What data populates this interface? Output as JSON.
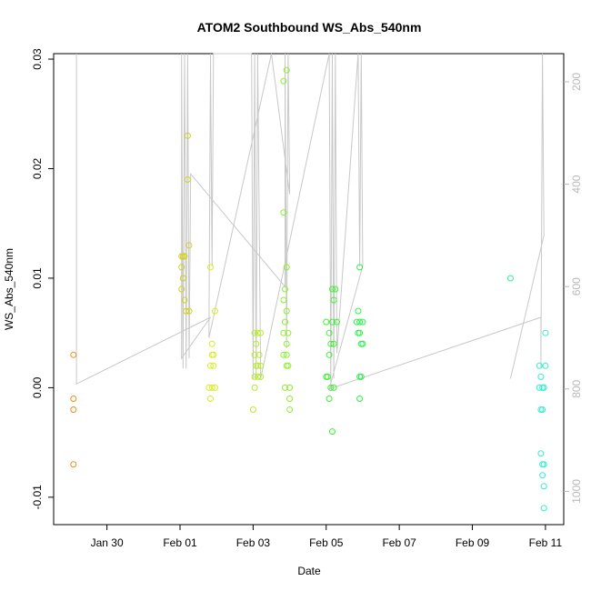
{
  "chart_data": {
    "type": "scatter",
    "title": "ATOM2 Southbound WS_Abs_540nm",
    "xlabel": "Date",
    "ylabel": "WS_Abs_540nm",
    "xlim": [
      "2017-01-28T13:00",
      "2017-02-11T12:00"
    ],
    "ylim": [
      -0.0125,
      0.0305
    ],
    "y2lim": [
      1065,
      145
    ],
    "y2_reversed": true,
    "xticks": [
      {
        "date": "2017-01-30",
        "label": "Jan 30"
      },
      {
        "date": "2017-02-01",
        "label": "Feb 01"
      },
      {
        "date": "2017-02-03",
        "label": "Feb 03"
      },
      {
        "date": "2017-02-05",
        "label": "Feb 05"
      },
      {
        "date": "2017-02-07",
        "label": "Feb 07"
      },
      {
        "date": "2017-02-09",
        "label": "Feb 09"
      },
      {
        "date": "2017-02-11",
        "label": "Feb 11"
      }
    ],
    "yticks": [
      {
        "value": -0.01,
        "label": "-0.01"
      },
      {
        "value": 0.0,
        "label": "0.00"
      },
      {
        "value": 0.01,
        "label": "0.01"
      },
      {
        "value": 0.02,
        "label": "0.02"
      },
      {
        "value": 0.03,
        "label": "0.03"
      }
    ],
    "y2ticks": [
      {
        "value": 200,
        "label": "200"
      },
      {
        "value": 400,
        "label": "400"
      },
      {
        "value": 600,
        "label": "600"
      },
      {
        "value": 800,
        "label": "800"
      },
      {
        "value": 1000,
        "label": "1000"
      }
    ],
    "grid": false,
    "legend": "none",
    "point_series": [
      {
        "color": "#f28a1a",
        "points": [
          [
            "2017-01-29T02:00",
            0.003
          ],
          [
            "2017-01-29T02:00",
            -0.001
          ],
          [
            "2017-01-29T02:00",
            -0.002
          ],
          [
            "2017-01-29T02:00",
            -0.007
          ]
        ]
      },
      {
        "color": "#cfd21c",
        "points": [
          [
            "2017-02-01T01:00",
            0.012
          ],
          [
            "2017-02-01T02:00",
            0.012
          ],
          [
            "2017-02-01T03:00",
            0.012
          ],
          [
            "2017-02-01T01:00",
            0.011
          ],
          [
            "2017-02-01T02:00",
            0.01
          ],
          [
            "2017-02-01T01:00",
            0.009
          ],
          [
            "2017-02-01T03:00",
            0.008
          ],
          [
            "2017-02-01T04:00",
            0.007
          ],
          [
            "2017-02-01T06:00",
            0.007
          ],
          [
            "2017-02-01T06:00",
            0.013
          ],
          [
            "2017-02-01T05:00",
            0.019
          ],
          [
            "2017-02-01T05:00",
            0.023
          ]
        ]
      },
      {
        "color": "#d9eb20",
        "points": [
          [
            "2017-02-01T20:00",
            0.011
          ],
          [
            "2017-02-01T21:00",
            0.004
          ],
          [
            "2017-02-01T21:00",
            0.003
          ],
          [
            "2017-02-01T22:00",
            0.003
          ],
          [
            "2017-02-01T20:00",
            0.002
          ],
          [
            "2017-02-01T22:00",
            0.002
          ],
          [
            "2017-02-01T23:00",
            0.007
          ],
          [
            "2017-02-01T19:00",
            0.0
          ],
          [
            "2017-02-01T21:00",
            0.0
          ],
          [
            "2017-02-01T23:00",
            0.0
          ],
          [
            "2017-02-01T20:00",
            -0.001
          ]
        ]
      },
      {
        "color": "#b4ed26",
        "points": [
          [
            "2017-02-03T01:00",
            0.005
          ],
          [
            "2017-02-03T03:00",
            0.005
          ],
          [
            "2017-02-03T05:00",
            0.005
          ],
          [
            "2017-02-03T02:00",
            0.004
          ],
          [
            "2017-02-03T01:00",
            0.003
          ],
          [
            "2017-02-03T04:00",
            0.003
          ],
          [
            "2017-02-03T02:00",
            0.002
          ],
          [
            "2017-02-03T03:00",
            0.002
          ],
          [
            "2017-02-03T05:00",
            0.002
          ],
          [
            "2017-02-03T01:00",
            0.001
          ],
          [
            "2017-02-03T03:00",
            0.001
          ],
          [
            "2017-02-03T05:00",
            0.001
          ],
          [
            "2017-02-03T01:00",
            0.0
          ],
          [
            "2017-02-03T00:00",
            -0.002
          ]
        ]
      },
      {
        "color": "#8af02a",
        "points": [
          [
            "2017-02-03T20:00",
            0.028
          ],
          [
            "2017-02-03T22:00",
            0.029
          ],
          [
            "2017-02-03T20:00",
            0.016
          ],
          [
            "2017-02-03T22:00",
            0.011
          ],
          [
            "2017-02-03T21:00",
            0.009
          ],
          [
            "2017-02-03T20:00",
            0.008
          ],
          [
            "2017-02-03T22:00",
            0.007
          ],
          [
            "2017-02-03T21:00",
            0.006
          ],
          [
            "2017-02-03T20:00",
            0.005
          ],
          [
            "2017-02-03T23:00",
            0.005
          ],
          [
            "2017-02-03T22:00",
            0.004
          ],
          [
            "2017-02-03T20:00",
            0.003
          ],
          [
            "2017-02-03T22:00",
            0.003
          ],
          [
            "2017-02-03T22:00",
            0.002
          ],
          [
            "2017-02-03T23:00",
            0.002
          ],
          [
            "2017-02-03T21:00",
            0.0
          ],
          [
            "2017-02-04T00:00",
            0.0
          ],
          [
            "2017-02-04T00:00",
            -0.001
          ],
          [
            "2017-02-04T00:00",
            -0.002
          ]
        ]
      },
      {
        "color": "#3ff034",
        "points": [
          [
            "2017-02-05T00:00",
            0.006
          ],
          [
            "2017-02-05T04:00",
            0.006
          ],
          [
            "2017-02-05T07:00",
            0.006
          ],
          [
            "2017-02-05T04:00",
            0.009
          ],
          [
            "2017-02-05T06:00",
            0.009
          ],
          [
            "2017-02-05T05:00",
            0.008
          ],
          [
            "2017-02-05T02:00",
            0.005
          ],
          [
            "2017-02-05T03:00",
            0.004
          ],
          [
            "2017-02-05T05:00",
            0.004
          ],
          [
            "2017-02-05T02:00",
            0.003
          ],
          [
            "2017-02-05T01:00",
            0.001
          ],
          [
            "2017-02-05T00:00",
            0.001
          ],
          [
            "2017-02-05T03:00",
            0.0
          ],
          [
            "2017-02-05T05:00",
            0.0
          ],
          [
            "2017-02-05T02:00",
            -0.001
          ],
          [
            "2017-02-05T04:00",
            -0.004
          ]
        ]
      },
      {
        "color": "#2df04c",
        "points": [
          [
            "2017-02-05T22:00",
            0.011
          ],
          [
            "2017-02-05T21:00",
            0.007
          ],
          [
            "2017-02-05T20:00",
            0.006
          ],
          [
            "2017-02-05T22:00",
            0.006
          ],
          [
            "2017-02-06T00:00",
            0.006
          ],
          [
            "2017-02-05T21:00",
            0.005
          ],
          [
            "2017-02-05T22:00",
            0.005
          ],
          [
            "2017-02-05T23:00",
            0.004
          ],
          [
            "2017-02-06T00:00",
            0.004
          ],
          [
            "2017-02-05T22:00",
            0.001
          ],
          [
            "2017-02-05T23:00",
            0.001
          ],
          [
            "2017-02-05T22:00",
            -0.001
          ]
        ]
      },
      {
        "color": "#2ff08a",
        "points": [
          [
            "2017-02-10T01:00",
            0.01
          ]
        ]
      },
      {
        "color": "#2ef0cc",
        "points": [
          [
            "2017-02-11T00:00",
            0.005
          ],
          [
            "2017-02-10T20:00",
            0.002
          ],
          [
            "2017-02-11T00:00",
            0.002
          ],
          [
            "2017-02-10T21:00",
            0.001
          ],
          [
            "2017-02-10T20:00",
            0.0
          ],
          [
            "2017-02-10T22:00",
            0.0
          ],
          [
            "2017-02-10T23:00",
            0.0
          ],
          [
            "2017-02-10T21:00",
            -0.002
          ],
          [
            "2017-02-10T22:00",
            -0.002
          ],
          [
            "2017-02-10T21:00",
            -0.006
          ],
          [
            "2017-02-10T22:00",
            -0.007
          ],
          [
            "2017-02-10T23:00",
            -0.007
          ],
          [
            "2017-02-10T22:00",
            -0.008
          ],
          [
            "2017-02-10T23:00",
            -0.009
          ],
          [
            "2017-02-10T23:00",
            -0.011
          ]
        ]
      }
    ],
    "depth_track": {
      "color": "#c8c8c8",
      "axis": "right",
      "points": [
        [
          "2017-01-29T04:00",
          145
        ],
        [
          "2017-01-29T04:00",
          790
        ],
        [
          "2017-02-01T20:00",
          660
        ],
        [
          "2017-02-01T01:00",
          740
        ],
        [
          "2017-02-01T01:00",
          145
        ],
        [
          "2017-02-01T02:00",
          760
        ],
        [
          "2017-02-01T03:00",
          145
        ],
        [
          "2017-02-01T04:00",
          760
        ],
        [
          "2017-02-01T05:00",
          145
        ],
        [
          "2017-02-01T06:00",
          740
        ],
        [
          "2017-02-01T07:00",
          380
        ],
        [
          "2017-02-03T21:00",
          600
        ],
        [
          "2017-02-03T21:00",
          145
        ],
        [
          "2017-02-03T22:00",
          720
        ],
        [
          "2017-02-03T23:00",
          145
        ],
        [
          "2017-02-04T00:00",
          420
        ],
        [
          "2017-02-03T12:00",
          145
        ],
        [
          "2017-02-01T19:00",
          700
        ],
        [
          "2017-02-01T20:00",
          145
        ],
        [
          "2017-02-01T21:00",
          560
        ],
        [
          "2017-02-01T22:00",
          145
        ],
        [
          "2017-02-02T23:00",
          145
        ],
        [
          "2017-02-03T00:00",
          780
        ],
        [
          "2017-02-03T01:00",
          145
        ],
        [
          "2017-02-03T02:00",
          780
        ],
        [
          "2017-02-03T03:00",
          145
        ],
        [
          "2017-02-03T05:00",
          780
        ],
        [
          "2017-02-05T02:00",
          145
        ],
        [
          "2017-02-05T03:00",
          800
        ],
        [
          "2017-02-05T04:00",
          145
        ],
        [
          "2017-02-05T05:00",
          780
        ],
        [
          "2017-02-05T06:00",
          145
        ],
        [
          "2017-02-05T07:00",
          730
        ],
        [
          "2017-02-05T21:00",
          145
        ],
        [
          "2017-02-05T22:00",
          560
        ],
        [
          "2017-02-05T23:00",
          145
        ],
        [
          "2017-02-06T00:00",
          560
        ],
        [
          "2017-02-05T02:00",
          800
        ],
        [
          "2017-02-10T21:00",
          660
        ],
        [
          "2017-02-10T21:00",
          760
        ],
        [
          "2017-02-10T22:00",
          145
        ],
        [
          "2017-02-10T23:00",
          500
        ],
        [
          "2017-02-10T01:00",
          780
        ]
      ]
    }
  }
}
